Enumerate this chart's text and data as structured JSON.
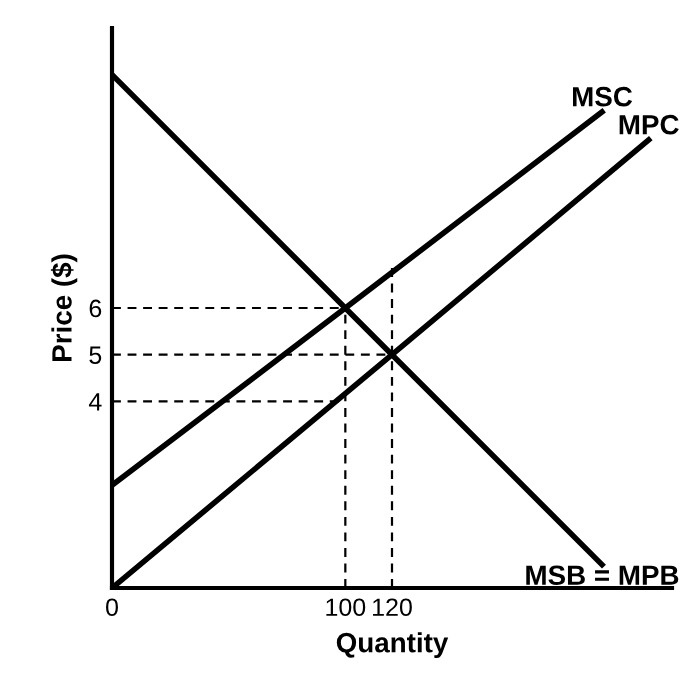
{
  "chart_data": {
    "type": "line",
    "xlabel": "Quantity",
    "ylabel": "Price ($)",
    "xlim": [
      0,
      240
    ],
    "ylim": [
      0,
      12
    ],
    "xticks": [
      0,
      100,
      120
    ],
    "yticks": [
      4,
      5,
      6
    ],
    "grid": false,
    "legend": false,
    "marker": "none",
    "series": [
      {
        "name": "MSC",
        "color": "#000000",
        "x": [
          0,
          100,
          210
        ],
        "values": [
          2.2,
          6,
          10.2
        ],
        "line_style": "solid"
      },
      {
        "name": "MPC",
        "color": "#000000",
        "x": [
          0,
          120,
          230
        ],
        "values": [
          0,
          5,
          9.6
        ],
        "line_style": "solid"
      },
      {
        "name": "MSB = MPB",
        "color": "#000000",
        "x": [
          0,
          120,
          210
        ],
        "values": [
          11,
          5,
          0.5
        ],
        "line_style": "solid"
      },
      {
        "color": "#000000",
        "x": [
          0,
          100
        ],
        "values": [
          6,
          6
        ],
        "line_style": "dashed"
      },
      {
        "color": "#000000",
        "x": [
          0,
          120
        ],
        "values": [
          5,
          5
        ],
        "line_style": "dashed"
      },
      {
        "color": "#000000",
        "x": [
          0,
          100
        ],
        "values": [
          4,
          4
        ],
        "line_style": "dashed"
      },
      {
        "color": "#000000",
        "x": [
          100,
          100
        ],
        "values": [
          0,
          6
        ],
        "line_style": "dashed"
      },
      {
        "color": "#000000",
        "x": [
          120,
          120
        ],
        "values": [
          0,
          7
        ],
        "line_style": "dashed"
      }
    ]
  }
}
